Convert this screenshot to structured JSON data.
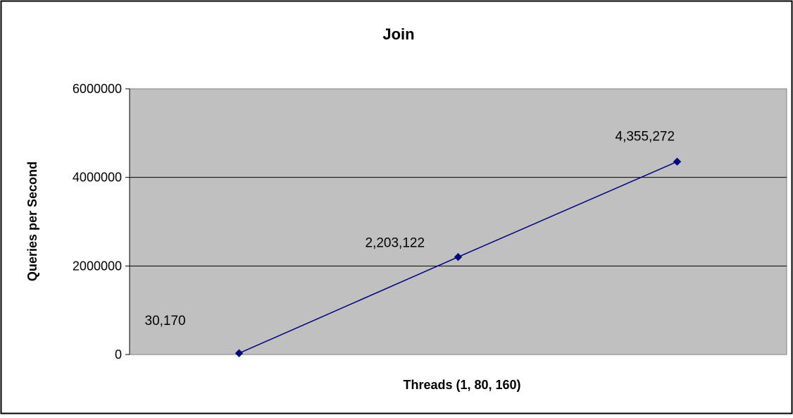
{
  "chart_data": {
    "type": "line",
    "title": "Join",
    "xlabel": "Threads (1, 80, 160)",
    "ylabel": "Queries per Second",
    "categories": [
      "1",
      "80",
      "160"
    ],
    "series": [
      {
        "values": [
          30170,
          2203122,
          4355272
        ],
        "data_labels": [
          "30,170",
          "2,203,122",
          "4,355,272"
        ]
      }
    ],
    "ylim": [
      0,
      6000000
    ],
    "yticks": [
      0,
      2000000,
      4000000,
      6000000
    ],
    "ytick_labels": [
      "0",
      "2000000",
      "4000000",
      "6000000"
    ],
    "grid": "horizontal",
    "legend": "none",
    "colors": {
      "plot_background": "#c0c0c0",
      "series_line": "#000080",
      "series_marker": "#000080",
      "gridline": "#000000",
      "border": "#000000"
    }
  }
}
